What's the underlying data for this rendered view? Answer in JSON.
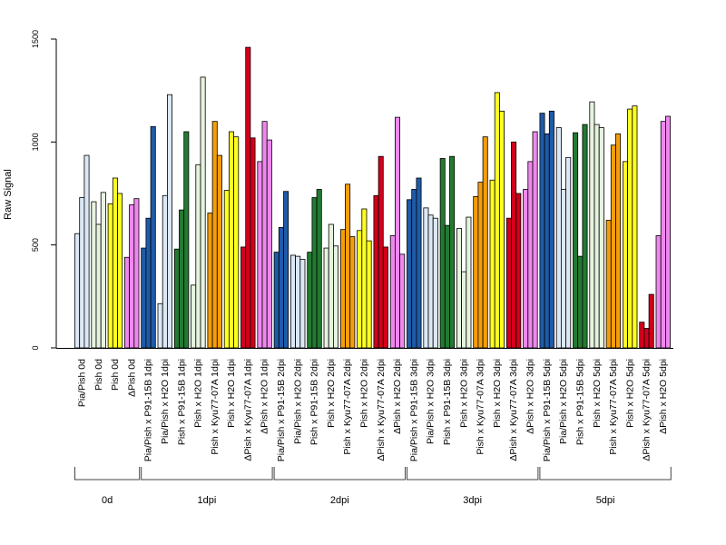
{
  "chart_data": {
    "type": "bar",
    "ylabel": "Raw Signal",
    "ylim": [
      0,
      1500
    ],
    "yticks": [
      0,
      500,
      1000,
      1500
    ],
    "grid": false,
    "legend": "none",
    "categories": [
      "Pia/Pish 0d",
      "Pish 0d",
      "Pish 0d",
      "ΔPish 0d",
      "Pia/Pish x P91-15B 1dpi",
      "Pia/Pish x H2O 1dpi",
      "Pish x P91-15B 1dpi",
      "Pish x H2O 1dpi",
      "Pish x Kyu77-07A 1dpi",
      "Pish x H2O 1dpi",
      "ΔPish x Kyu77-07A 1dpi",
      "ΔPish x H2O 1dpi",
      "Pia/Pish x P91-15B 2dpi",
      "Pia/Pish x H2O 2dpi",
      "Pish x P91-15B 2dpi",
      "Pish x H2O 2dpi",
      "Pish x Kyu77-07A 2dpi",
      "Pish x H2O 2dpi",
      "ΔPish x Kyu77-07A 2dpi",
      "ΔPish x H2O 2dpi",
      "Pia/Pish x P91-15B 3dpi",
      "Pia/Pish x H2O 3dpi",
      "Pish x P91-15B 3dpi",
      "Pish x H2O 3dpi",
      "Pish x Kyu77-07A 3dpi",
      "Pish x H2O 3dpi",
      "ΔPish x Kyu77-07A 3dpi",
      "ΔPish x H2O 3dpi",
      "Pia/Pish x P91-15B 5dpi",
      "Pia/Pish x H2O 5dpi",
      "Pish x P91-15B 5dpi",
      "Pish x H2O 5dpi",
      "Pish x Kyu77-07A 5dpi",
      "Pish x H2O 5dpi",
      "ΔPish x Kyu77-07A 5dpi",
      "ΔPish x H2O 5dpi"
    ],
    "group_colors": [
      "#dce8f5",
      "#e6f3df",
      "#ffff22",
      "#ee88ee",
      "#1f5ba8",
      "#dce8f5",
      "#237a32",
      "#e6f3df",
      "#f59e0b",
      "#ffff22",
      "#d1001c",
      "#ee88ee",
      "#1f5ba8",
      "#dce8f5",
      "#237a32",
      "#e6f3df",
      "#f59e0b",
      "#ffff22",
      "#d1001c",
      "#ee88ee",
      "#1f5ba8",
      "#dce8f5",
      "#237a32",
      "#e6f3df",
      "#f59e0b",
      "#ffff22",
      "#d1001c",
      "#ee88ee",
      "#1f5ba8",
      "#dce8f5",
      "#237a32",
      "#e6f3df",
      "#f59e0b",
      "#ffff22",
      "#d1001c",
      "#ee88ee"
    ],
    "values": [
      [
        555,
        730,
        935
      ],
      [
        710,
        600,
        755
      ],
      [
        700,
        825,
        750
      ],
      [
        440,
        695,
        725
      ],
      [
        485,
        630,
        1075
      ],
      [
        215,
        740,
        1230
      ],
      [
        480,
        670,
        1050
      ],
      [
        305,
        890,
        1315
      ],
      [
        655,
        1100,
        935
      ],
      [
        765,
        1050,
        1025
      ],
      [
        490,
        1460,
        1020
      ],
      [
        905,
        1100,
        1010
      ],
      [
        465,
        585,
        760
      ],
      [
        450,
        445,
        430
      ],
      [
        465,
        730,
        770
      ],
      [
        485,
        600,
        495
      ],
      [
        575,
        795,
        540
      ],
      [
        570,
        675,
        520
      ],
      [
        740,
        930,
        490
      ],
      [
        545,
        1120,
        455
      ],
      [
        720,
        770,
        825
      ],
      [
        680,
        645,
        630
      ],
      [
        920,
        595,
        930
      ],
      [
        580,
        370,
        635
      ],
      [
        735,
        805,
        1025
      ],
      [
        815,
        1240,
        1150
      ],
      [
        630,
        1000,
        750
      ],
      [
        770,
        905,
        1050
      ],
      [
        1140,
        1040,
        1150
      ],
      [
        1070,
        770,
        925
      ],
      [
        1045,
        445,
        1085
      ],
      [
        1195,
        1085,
        1070
      ],
      [
        620,
        985,
        1040
      ],
      [
        905,
        1160,
        1175
      ],
      [
        125,
        95,
        260
      ],
      [
        545,
        1100,
        1125
      ]
    ],
    "time_groups": [
      {
        "label": "0d",
        "start": 0,
        "end": 3
      },
      {
        "label": "1dpi",
        "start": 4,
        "end": 11
      },
      {
        "label": "2dpi",
        "start": 12,
        "end": 19
      },
      {
        "label": "3dpi",
        "start": 20,
        "end": 27
      },
      {
        "label": "5dpi",
        "start": 28,
        "end": 35
      }
    ]
  }
}
